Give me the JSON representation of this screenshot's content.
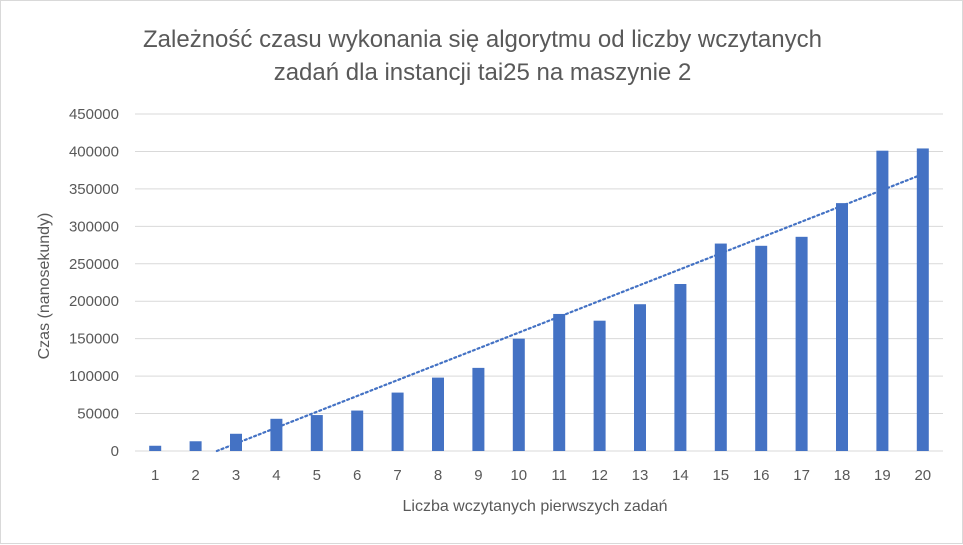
{
  "chart_data": {
    "type": "bar",
    "title_line1": "Zależność czasu wykonania się algorytmu od liczby wczytanych",
    "title_line2": "zadań dla instancji tai25 na maszynie 2",
    "xlabel": "Liczba wczytanych pierwszych zadań",
    "ylabel": "Czas (nanosekundy)",
    "categories": [
      "1",
      "2",
      "3",
      "4",
      "5",
      "6",
      "7",
      "8",
      "9",
      "10",
      "11",
      "12",
      "13",
      "14",
      "15",
      "16",
      "17",
      "18",
      "19",
      "20"
    ],
    "values": [
      7000,
      13000,
      23000,
      43000,
      48000,
      54000,
      78000,
      98000,
      111000,
      150000,
      183000,
      174000,
      196000,
      223000,
      277000,
      274000,
      286000,
      331000,
      401000,
      404000
    ],
    "ylim": [
      0,
      450000
    ],
    "yticks": [
      "0",
      "50000",
      "100000",
      "150000",
      "200000",
      "250000",
      "300000",
      "350000",
      "400000",
      "450000"
    ],
    "grid": true,
    "trendline": {
      "type": "linear",
      "style": "dotted"
    },
    "colors": {
      "bar": "#4472c4",
      "trend": "#4472c4",
      "grid": "#d9d9d9",
      "text": "#595959"
    }
  }
}
